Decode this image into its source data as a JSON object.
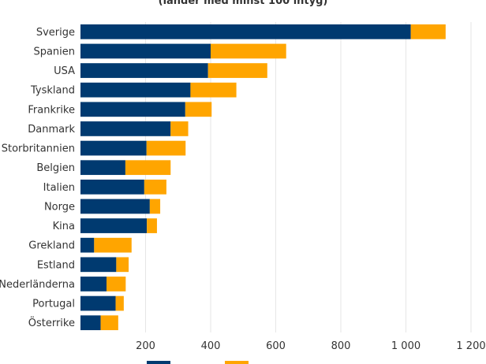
{
  "chart_data": {
    "type": "bar",
    "orientation": "horizontal",
    "stacked": true,
    "title": "(länder med minst 100 intyg)",
    "categories": [
      "Sverige",
      "Spanien",
      "USA",
      "Tyskland",
      "Frankrike",
      "Danmark",
      "Storbritannien",
      "Belgien",
      "Italien",
      "Norge",
      "Kina",
      "Grekland",
      "Estland",
      "Nederländerna",
      "Portugal",
      "Österrike"
    ],
    "series": [
      {
        "color": "#003a70",
        "values": [
          1015,
          400,
          392,
          338,
          322,
          277,
          203,
          138,
          196,
          213,
          204,
          42,
          110,
          80,
          108,
          62
        ]
      },
      {
        "color": "#ffa500",
        "values": [
          107,
          232,
          182,
          141,
          81,
          54,
          120,
          139,
          68,
          32,
          31,
          115,
          38,
          59,
          25,
          54
        ]
      }
    ],
    "xticks": [
      200,
      400,
      600,
      800,
      1000,
      1200
    ],
    "xtick_labels": [
      "200",
      "400",
      "600",
      "800",
      "1 000",
      "1 200"
    ],
    "xlim": [
      0,
      1200
    ],
    "grid": "vertical",
    "legend": "bottom"
  }
}
